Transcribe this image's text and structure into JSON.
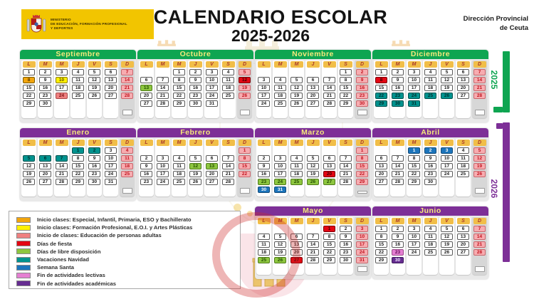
{
  "header": {
    "ministry_line1": "MINISTERIO",
    "ministry_line2": "DE EDUCACIÓN, FORMACIÓN PROFESIONAL",
    "ministry_line3": "Y DEPORTES",
    "title_line1": "CALENDARIO ESCOLAR",
    "title_line2": "2025-2026",
    "provincial_line1": "Dirección Provincial",
    "provincial_line2": "de Ceuta"
  },
  "year_brackets": [
    {
      "year": "2025",
      "color": "#0EA551"
    },
    {
      "year": "2026",
      "color": "#7D2F97"
    }
  ],
  "weekday_headers": [
    "L",
    "M",
    "M",
    "J",
    "V",
    "S",
    "D"
  ],
  "cell_types": {
    "n": {
      "label": "día lectivo",
      "bg": "#FFFFFF",
      "fg": "#1a1a1a",
      "border": "#5a5a5a"
    },
    "su": {
      "label": "domingo",
      "bg": "#F7ACB0",
      "fg": "#C1121C",
      "border": "#C9666C"
    },
    "or": {
      "label": "inicio clases Especial/Infantil/Primaria/ESO/Bachillerato",
      "bg": "#F2A50C",
      "fg": "#5c3a00",
      "border": "#7a5a00"
    },
    "ye": {
      "label": "inicio clases FP/EOI/Artes Plásticas",
      "bg": "#FFF100",
      "fg": "#5c4d00",
      "border": "#8a7a00"
    },
    "sa": {
      "label": "inicio clases personas adultas",
      "bg": "#EF8080",
      "fg": "#7c1113",
      "border": "#a84848"
    },
    "re": {
      "label": "día de fiesta",
      "bg": "#E30613",
      "fg": "#3a0000",
      "border": "#7a0008"
    },
    "gr": {
      "label": "libre disposición",
      "bg": "#8DC63F",
      "fg": "#234d00",
      "border": "#4e7a1a"
    },
    "te": {
      "label": "vacaciones Navidad",
      "bg": "#00938F",
      "fg": "#012e2c",
      "border": "#00504d"
    },
    "bl": {
      "label": "Semana Santa",
      "bg": "#1C75BC",
      "fg": "#ffffff",
      "border": "#114a79"
    },
    "ma": {
      "label": "fin actividades lectivas",
      "bg": "#E57FD2",
      "fg": "#5c0a52",
      "border": "#9a4a8a"
    },
    "pu": {
      "label": "fin actividades académicas",
      "bg": "#662D91",
      "fg": "#f2e6ff",
      "border": "#3f1a5c"
    }
  },
  "months": [
    {
      "name": "Septiembre",
      "year": "2025",
      "header_color": "#0EA551",
      "weeks": [
        [
          "1",
          "2",
          "3",
          "4",
          "5",
          "6",
          "7su"
        ],
        [
          "8or",
          "9",
          "10ye",
          "11",
          "12",
          "13",
          "14su"
        ],
        [
          "15",
          "16",
          "17",
          "18",
          "19",
          "20",
          "21su"
        ],
        [
          "22",
          "23",
          "24sa",
          "25",
          "26",
          "27",
          "28su"
        ],
        [
          "29",
          "30",
          "",
          "",
          "",
          "",
          ""
        ]
      ]
    },
    {
      "name": "Octubre",
      "year": "2025",
      "header_color": "#0EA551",
      "weeks": [
        [
          "",
          "",
          "1",
          "2",
          "3",
          "4",
          "5su"
        ],
        [
          "6",
          "7",
          "8",
          "9",
          "10",
          "11",
          "12re"
        ],
        [
          "13gr",
          "14",
          "15",
          "16",
          "17",
          "18",
          "19su"
        ],
        [
          "20",
          "21",
          "22",
          "23",
          "24",
          "25",
          "26su"
        ],
        [
          "27",
          "28",
          "29",
          "30",
          "31",
          "",
          ""
        ]
      ]
    },
    {
      "name": "Noviembre",
      "year": "2025",
      "header_color": "#0EA551",
      "weeks": [
        [
          "",
          "",
          "",
          "",
          "",
          "1",
          "2su"
        ],
        [
          "3",
          "4",
          "5",
          "6",
          "7",
          "8",
          "9su"
        ],
        [
          "10",
          "11",
          "12",
          "13",
          "14",
          "15",
          "16su"
        ],
        [
          "17",
          "18",
          "19",
          "20",
          "21",
          "22",
          "23su"
        ],
        [
          "24",
          "25",
          "26",
          "27",
          "28",
          "29",
          "30su"
        ]
      ]
    },
    {
      "name": "Diciembre",
      "year": "2025",
      "header_color": "#0EA551",
      "weeks": [
        [
          "1",
          "2",
          "3",
          "4",
          "5",
          "6",
          "7su"
        ],
        [
          "8re",
          "9",
          "10",
          "11",
          "12",
          "13",
          "14su"
        ],
        [
          "15",
          "16",
          "17",
          "18",
          "19",
          "20",
          "21su"
        ],
        [
          "22te",
          "23te",
          "24te",
          "25te",
          "26te",
          "27",
          "28su"
        ],
        [
          "29te",
          "30te",
          "31te",
          "",
          "",
          "",
          ""
        ]
      ]
    },
    {
      "name": "Enero",
      "year": "2026",
      "header_color": "#7D2F97",
      "weeks": [
        [
          "",
          "",
          "",
          "1te",
          "2te",
          "3",
          "4su"
        ],
        [
          "5te",
          "6te",
          "7te",
          "8",
          "9",
          "10",
          "11su"
        ],
        [
          "12",
          "13",
          "14",
          "15",
          "16",
          "17",
          "18su"
        ],
        [
          "19",
          "20",
          "21",
          "22",
          "23",
          "24",
          "25su"
        ],
        [
          "26",
          "27",
          "28",
          "29",
          "30",
          "31",
          ""
        ]
      ]
    },
    {
      "name": "Febrero",
      "year": "2026",
      "header_color": "#7D2F97",
      "weeks": [
        [
          "",
          "",
          "",
          "",
          "",
          "",
          "1su"
        ],
        [
          "2",
          "3",
          "4",
          "5",
          "6",
          "7",
          "8su"
        ],
        [
          "9",
          "10",
          "11",
          "12gr",
          "13gr",
          "14",
          "15su"
        ],
        [
          "16",
          "17",
          "18",
          "19",
          "20",
          "21",
          "22su"
        ],
        [
          "23",
          "24",
          "25",
          "26",
          "27",
          "28",
          ""
        ]
      ]
    },
    {
      "name": "Marzo",
      "year": "2026",
      "header_color": "#7D2F97",
      "weeks": [
        [
          "",
          "",
          "",
          "",
          "",
          "",
          "1su"
        ],
        [
          "2",
          "3",
          "4",
          "5",
          "6",
          "7",
          "8su"
        ],
        [
          "9",
          "10",
          "11",
          "12",
          "13",
          "14",
          "15su"
        ],
        [
          "16",
          "17",
          "18",
          "19",
          "20re",
          "21",
          "22su"
        ],
        [
          "23gr",
          "24gr",
          "25gr",
          "26gr",
          "27gr",
          "28",
          "29su"
        ],
        [
          "30bl",
          "31bl",
          "",
          "",
          "",
          "",
          ""
        ]
      ]
    },
    {
      "name": "Abril",
      "year": "2026",
      "header_color": "#7D2F97",
      "weeks": [
        [
          "",
          "",
          "1bl",
          "2bl",
          "3bl",
          "4",
          "5su"
        ],
        [
          "6",
          "7",
          "8",
          "9",
          "10",
          "11",
          "12su"
        ],
        [
          "13",
          "14",
          "15",
          "16",
          "17",
          "18",
          "19su"
        ],
        [
          "20",
          "21",
          "22",
          "23",
          "24",
          "25",
          "26su"
        ],
        [
          "27",
          "28",
          "29",
          "30",
          "",
          "",
          ""
        ]
      ]
    },
    {
      "name": "Mayo",
      "year": "2026",
      "header_color": "#7D2F97",
      "weeks": [
        [
          "",
          "",
          "",
          "",
          "1re",
          "2",
          "3su"
        ],
        [
          "4",
          "5",
          "6",
          "7",
          "8",
          "9",
          "10su"
        ],
        [
          "11",
          "12",
          "13",
          "14",
          "15",
          "16",
          "17su"
        ],
        [
          "18",
          "19",
          "20",
          "21",
          "22",
          "23",
          "24su"
        ],
        [
          "25gr",
          "26gr",
          "27re",
          "28",
          "29",
          "30",
          "31su"
        ]
      ]
    },
    {
      "name": "Junio",
      "year": "2026",
      "header_color": "#7D2F97",
      "weeks": [
        [
          "1",
          "2",
          "3",
          "4",
          "5",
          "6",
          "7su"
        ],
        [
          "8",
          "9",
          "10",
          "11",
          "12",
          "13",
          "14su"
        ],
        [
          "15",
          "16",
          "17",
          "18",
          "19",
          "20",
          "21su"
        ],
        [
          "22",
          "23ma",
          "24",
          "25",
          "26",
          "27",
          "28su"
        ],
        [
          "29",
          "30pu",
          "",
          "",
          "",
          "",
          ""
        ]
      ]
    }
  ],
  "legend": {
    "items": [
      {
        "code": "or",
        "color": "#F2A50C",
        "label": "Inicio clases: Especial, Infantil, Primaria, ESO y Bachillerato"
      },
      {
        "code": "ye",
        "color": "#FFF100",
        "label": "Inicio clases: Formación Profesional, E.O.I. y Artes Plásticas"
      },
      {
        "code": "sa",
        "color": "#EF8080",
        "label": "Inicio de clases: Educación de personas adultas"
      },
      {
        "code": "re",
        "color": "#E30613",
        "label": "Días de fiesta"
      },
      {
        "code": "gr",
        "color": "#8DC63F",
        "label": "Días de libre disposición"
      },
      {
        "code": "te",
        "color": "#00938F",
        "label": "Vacaciones Navidad"
      },
      {
        "code": "bl",
        "color": "#1C75BC",
        "label": "Semana Santa"
      },
      {
        "code": "ma",
        "color": "#E57FD2",
        "label": "Fin de actividades lectivas"
      },
      {
        "code": "pu",
        "color": "#662D91",
        "label": "Fin de actividades académicas"
      }
    ]
  }
}
